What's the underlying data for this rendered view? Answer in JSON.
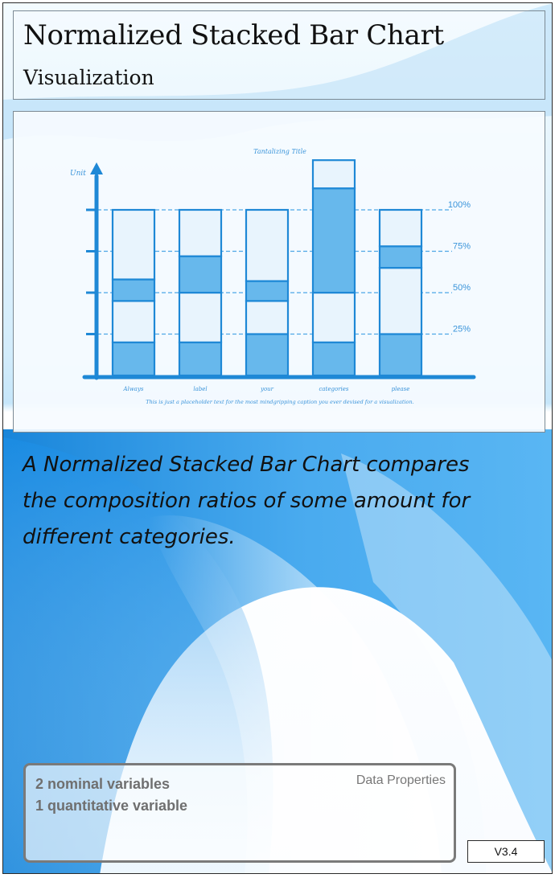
{
  "header": {
    "title": "Normalized Stacked Bar Chart",
    "subtitle": "Visualization"
  },
  "chart_data": {
    "type": "bar",
    "stacked": true,
    "normalized": true,
    "title": "Tantalizing Title",
    "ylabel": "Unit",
    "xlabel": "",
    "caption": "This is just a placeholder text for the most mindgripping caption you ever devised for a visualization.",
    "categories": [
      "Always",
      "label",
      "your",
      "categories",
      "please"
    ],
    "ylim": [
      0,
      100
    ],
    "y_ticks": [
      25,
      50,
      75,
      100
    ],
    "y_tick_labels": [
      "25%",
      "50%",
      "75%",
      "100%"
    ],
    "grid": "dashed horizontal at 25% intervals",
    "series": [
      {
        "values": [
          20,
          20,
          25,
          20,
          25
        ],
        "color": "#67b8ec"
      },
      {
        "values": [
          25,
          30,
          20,
          30,
          40
        ],
        "color": "#e8f4fd"
      },
      {
        "values": [
          13,
          22,
          12,
          63,
          13
        ],
        "color": "#67b8ec"
      },
      {
        "values": [
          42,
          28,
          43,
          17,
          22
        ],
        "color": "#e8f4fd"
      }
    ]
  },
  "description": {
    "text": "A Normalized Stacked Bar Chart compares the composition ratios of some amount for different categories."
  },
  "properties": {
    "label": "Data Properties",
    "items": [
      "2 nominal variables",
      "1 quantitative variable"
    ]
  },
  "version": "V3.4",
  "colors": {
    "accent": "#1e88d6",
    "accent_dark": "#1565b4",
    "bar_light": "#e8f4fd",
    "bar_dark": "#67b8ec"
  }
}
